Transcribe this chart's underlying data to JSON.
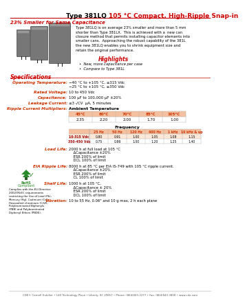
{
  "title_black": "Type 381LQ ",
  "title_red": "105 °C Compact, High-Ripple Snap-in",
  "subtitle": "23% Smaller for Same Capacitance",
  "body_text": "Type 381LQ is on average 23% smaller and more than 5 mm\nshorter than Type 381LX.  This is achieved with a  new can\nclosure method that permits installing capacitor elements into\nsmaller cans.  Approaching the robust capability of the 381L\nthe new 381LQ enables you to shrink equipment size and\nretain the original performance.",
  "highlights_title": "Highlights",
  "highlights": [
    "New, more capacitance per case",
    "Compare to Type 381L"
  ],
  "temp_headers": [
    "45°C",
    "60°C",
    "70°C",
    "85°C",
    "105°C"
  ],
  "temp_values": [
    "2.35",
    "2.20",
    "2.00",
    "1.70",
    "1.00"
  ],
  "freq_headers": [
    "25 Hz",
    "50 Hz",
    "120 Hz",
    "400 Hz",
    "1 kHz",
    "10 kHz & up"
  ],
  "freq_row1_label": "10-315 Vdc",
  "freq_row1": [
    "0.80",
    "0.91",
    "1.00",
    "1.05",
    "1.08",
    "1.15"
  ],
  "freq_row2_label": "350-450 Vdc",
  "freq_row2": [
    "0.75",
    "0.86",
    "1.00",
    "1.20",
    "1.25",
    "1.40"
  ],
  "footer": "CDE® Cornell Dubilier • 140 Technology Place • Liberty, SC 29657 • Phone: (864)843-2277 • Fax: (864)843-3800 • www.cde.com",
  "color_red": "#cc0000",
  "color_orange": "#cc6600",
  "color_black": "#000000",
  "color_bg": "#ffffff",
  "color_table_header_bg": "#f5c0a0",
  "color_table_row1_bg": "#fde8d8",
  "color_label": "#cc3300",
  "color_freq_label": "#990000"
}
